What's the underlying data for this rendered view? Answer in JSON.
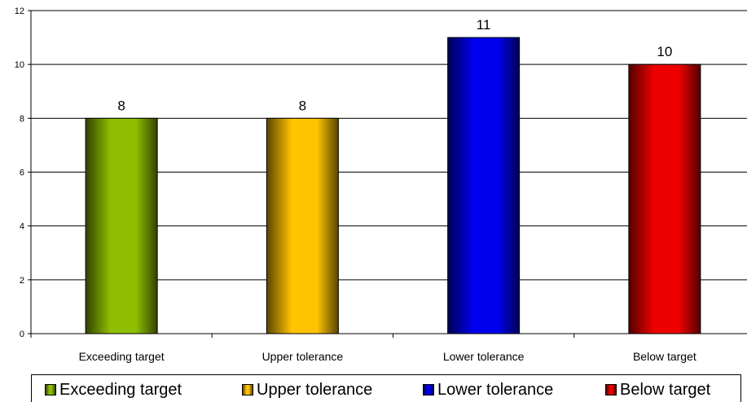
{
  "chart_data": {
    "type": "bar",
    "categories": [
      "Exceeding target",
      "Upper tolerance",
      "Lower tolerance",
      "Below target"
    ],
    "values": [
      8,
      8,
      11,
      10
    ],
    "colors": [
      "#8fbf00",
      "#ffc400",
      "#0000ee",
      "#ee0000"
    ],
    "yticks": [
      0,
      2,
      4,
      6,
      8,
      10,
      12
    ],
    "ylim": [
      0,
      12
    ],
    "grid": true,
    "legend_position": "bottom"
  }
}
